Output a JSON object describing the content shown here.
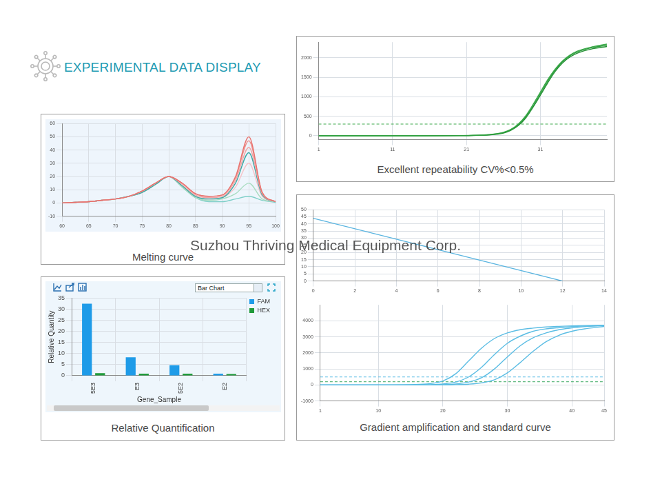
{
  "heading": "EXPERIMENTAL DATA DISPLAY",
  "watermark": "Suzhou Thriving Medical Equipment Corp.",
  "chart_data": [
    {
      "type": "line",
      "caption": "Melting curve",
      "grid": true,
      "marker": "none",
      "x": [
        60,
        62.5,
        65,
        67.5,
        70,
        72.5,
        75,
        77.5,
        80,
        82.5,
        85,
        87.5,
        90,
        92.5,
        95,
        97.5,
        100
      ],
      "xlim": [
        60,
        100
      ],
      "xticks": [
        60,
        65,
        70,
        75,
        80,
        85,
        90,
        95,
        100
      ],
      "ylim": [
        -10,
        60
      ],
      "yticks": [
        -10,
        0,
        10,
        20,
        30,
        40,
        50,
        60
      ],
      "series": [
        {
          "color": "#e8736f",
          "values": [
            0,
            0.5,
            1,
            2,
            3,
            5,
            9,
            15,
            20,
            15,
            7,
            5,
            6,
            20,
            50,
            8,
            1
          ]
        },
        {
          "color": "#ee8e8a",
          "values": [
            0,
            0.5,
            1,
            2,
            3,
            5,
            9,
            15,
            20,
            15,
            7,
            5,
            6,
            19,
            47,
            8,
            1
          ]
        },
        {
          "color": "#f2a5a5",
          "values": [
            0,
            0.5,
            1,
            2,
            3,
            5,
            9,
            15,
            20,
            14,
            6,
            4,
            5,
            17,
            42,
            7,
            1
          ]
        },
        {
          "color": "#3aa9a5",
          "values": [
            0,
            0.5,
            1,
            2,
            3,
            5,
            8,
            14,
            20,
            13,
            5,
            3,
            4,
            15,
            38,
            6,
            1
          ]
        },
        {
          "color": "#f6c3c8",
          "values": [
            0,
            0.5,
            1,
            2,
            3,
            5,
            8,
            14,
            20,
            13,
            5,
            3,
            4,
            12,
            30,
            5,
            1
          ]
        },
        {
          "color": "#a8dcc0",
          "values": [
            0,
            0.5,
            1,
            2,
            3,
            5,
            8,
            14,
            20,
            12,
            4,
            2,
            3,
            7,
            15,
            3,
            1
          ]
        },
        {
          "color": "#7fcfc8",
          "values": [
            0,
            0.5,
            1,
            2,
            3,
            5,
            8,
            14,
            20,
            12,
            4,
            1,
            1,
            3,
            5,
            2,
            0.5
          ]
        }
      ]
    },
    {
      "type": "line",
      "caption": "Excellent repeatability CV%<0.5%",
      "grid": true,
      "marker": "none",
      "x": [
        1,
        5,
        10,
        15,
        20,
        22,
        24,
        26,
        27,
        28,
        29,
        30,
        31,
        32,
        33,
        34,
        35,
        36,
        38,
        40
      ],
      "xlim": [
        1,
        40
      ],
      "xticks": [
        1,
        11,
        21,
        31
      ],
      "ylim": [
        -100,
        2400
      ],
      "yticks": [
        0,
        500,
        1000,
        1500,
        2000
      ],
      "series": [
        {
          "color": "#2e9e3e",
          "values": [
            0,
            0,
            0,
            0,
            5,
            10,
            25,
            80,
            150,
            280,
            480,
            760,
            1080,
            1400,
            1680,
            1900,
            2050,
            2150,
            2260,
            2320
          ]
        },
        {
          "color": "#3aab48",
          "values": [
            0,
            0,
            0,
            0,
            5,
            12,
            30,
            90,
            165,
            300,
            510,
            800,
            1120,
            1440,
            1710,
            1920,
            2070,
            2170,
            2280,
            2350
          ]
        },
        {
          "color": "#259035",
          "values": [
            0,
            0,
            0,
            0,
            4,
            9,
            22,
            70,
            140,
            260,
            450,
            730,
            1040,
            1360,
            1650,
            1870,
            2020,
            2120,
            2230,
            2290
          ]
        },
        {
          "color": "#3aa84a",
          "line_style": "dashed",
          "x": [
            1,
            40
          ],
          "values": [
            300,
            300
          ]
        }
      ]
    },
    {
      "type": "bar",
      "caption": "Relative Quantification",
      "dropdown": "Bar Chart",
      "grid": true,
      "legend": "upper right",
      "x_label": "Gene_Sample",
      "y_label": "Relative Quantity",
      "categories": [
        "5E3",
        "E3",
        "5E2",
        "E2"
      ],
      "ylim": [
        0,
        35
      ],
      "yticks": [
        0,
        5,
        10,
        15,
        20,
        25,
        30,
        35
      ],
      "series": [
        {
          "name": "FAM",
          "color": "#1e9be8",
          "values": [
            32.5,
            8.3,
            4.7,
            0.9
          ]
        },
        {
          "name": "HEX",
          "color": "#1f9a3a",
          "values": [
            1.2,
            0.9,
            0.9,
            0.8
          ]
        }
      ]
    },
    {
      "type": "line",
      "grid": true,
      "marker": "none",
      "x": [
        0,
        12
      ],
      "xlim": [
        0,
        14
      ],
      "xticks": [
        0,
        2,
        4,
        6,
        8,
        10,
        12,
        14
      ],
      "ylim": [
        0,
        50
      ],
      "yticks": [
        0,
        5,
        10,
        15,
        20,
        25,
        30,
        35,
        40,
        45,
        50
      ],
      "series": [
        {
          "color": "#5bb5e0",
          "values": [
            44,
            0
          ]
        }
      ]
    },
    {
      "type": "line",
      "caption": "Gradient amplification and standard curve",
      "grid": true,
      "marker": "none",
      "x": [
        1,
        5,
        10,
        15,
        18,
        20,
        22,
        24,
        26,
        28,
        30,
        32,
        34,
        36,
        38,
        40,
        42,
        45
      ],
      "xlim": [
        1,
        45
      ],
      "xticks": [
        1,
        10,
        20,
        30,
        40,
        45
      ],
      "ylim": [
        -1000,
        5000
      ],
      "yticks": [
        -1000,
        0,
        1000,
        2000,
        3000,
        4000
      ],
      "series": [
        {
          "color": "#5bbde4",
          "values": [
            0,
            0,
            0,
            20,
            80,
            250,
            700,
            1500,
            2300,
            2900,
            3250,
            3450,
            3550,
            3620,
            3660,
            3690,
            3710,
            3730
          ]
        },
        {
          "color": "#5bbde4",
          "values": [
            0,
            0,
            0,
            0,
            20,
            60,
            180,
            500,
            1100,
            1900,
            2600,
            3050,
            3350,
            3500,
            3580,
            3640,
            3680,
            3720
          ]
        },
        {
          "color": "#5bbde4",
          "values": [
            0,
            0,
            0,
            0,
            0,
            20,
            60,
            180,
            450,
            1000,
            1750,
            2450,
            2950,
            3250,
            3450,
            3560,
            3640,
            3700
          ]
        },
        {
          "color": "#5bbde4",
          "values": [
            0,
            0,
            0,
            0,
            0,
            0,
            20,
            50,
            130,
            320,
            750,
            1400,
            2100,
            2700,
            3100,
            3350,
            3500,
            3650
          ]
        },
        {
          "color": "#5bbde4",
          "line_style": "dashed",
          "x": [
            1,
            45
          ],
          "values": [
            500,
            500
          ]
        },
        {
          "color": "#3aa860",
          "line_style": "dashed",
          "x": [
            1,
            45
          ],
          "values": [
            200,
            200
          ]
        }
      ]
    }
  ]
}
